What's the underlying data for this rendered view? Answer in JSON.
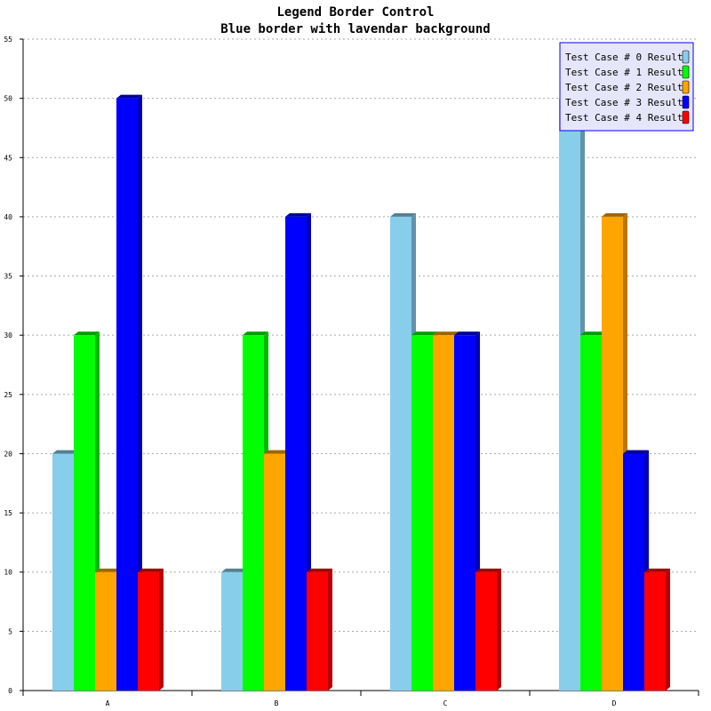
{
  "chart_data": {
    "type": "bar",
    "title": "Legend Border Control",
    "subtitle": "Blue border with lavendar background",
    "xlabel": "",
    "ylabel": "",
    "categories": [
      "A",
      "B",
      "C",
      "D"
    ],
    "ylim": [
      0,
      55
    ],
    "y_ticks": [
      "0",
      "5",
      "10",
      "15",
      "20",
      "25",
      "30",
      "35",
      "40",
      "45",
      "50",
      "55"
    ],
    "grid": true,
    "legend_placement": "top-right",
    "legend_border_color": "#0000ff",
    "legend_background_color": "#e6e6fa",
    "series": [
      {
        "name": "Test Case # 0 Results",
        "color": "#87ceeb",
        "values": [
          20,
          10,
          40,
          50
        ]
      },
      {
        "name": "Test Case # 1 Results",
        "color": "#00ff00",
        "values": [
          30,
          30,
          30,
          30
        ]
      },
      {
        "name": "Test Case # 2 Results",
        "color": "#ffa500",
        "values": [
          10,
          20,
          30,
          40
        ]
      },
      {
        "name": "Test Case # 3 Results",
        "color": "#0000ff",
        "values": [
          50,
          40,
          30,
          20
        ]
      },
      {
        "name": "Test Case # 4 Results",
        "color": "#ff0000",
        "values": [
          10,
          10,
          10,
          10
        ]
      }
    ]
  }
}
